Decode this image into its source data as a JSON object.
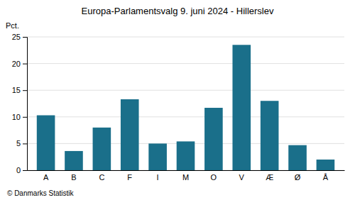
{
  "chart_data": {
    "type": "bar",
    "title": "Europa-Parlamentsvalg 9. juni 2024 - Hillerslev",
    "ylabel": "Pct.",
    "footer": "© Danmarks Statistik",
    "categories": [
      "A",
      "B",
      "C",
      "F",
      "I",
      "M",
      "O",
      "V",
      "Æ",
      "Ø",
      "Å"
    ],
    "values": [
      10.3,
      3.6,
      8.0,
      13.3,
      5.0,
      5.4,
      11.7,
      23.5,
      13.0,
      4.7,
      2.0
    ],
    "color": "#1a6f8a",
    "ylim": [
      0,
      25
    ],
    "yticks": [
      0,
      5,
      10,
      15,
      20,
      25
    ],
    "grid": true
  }
}
